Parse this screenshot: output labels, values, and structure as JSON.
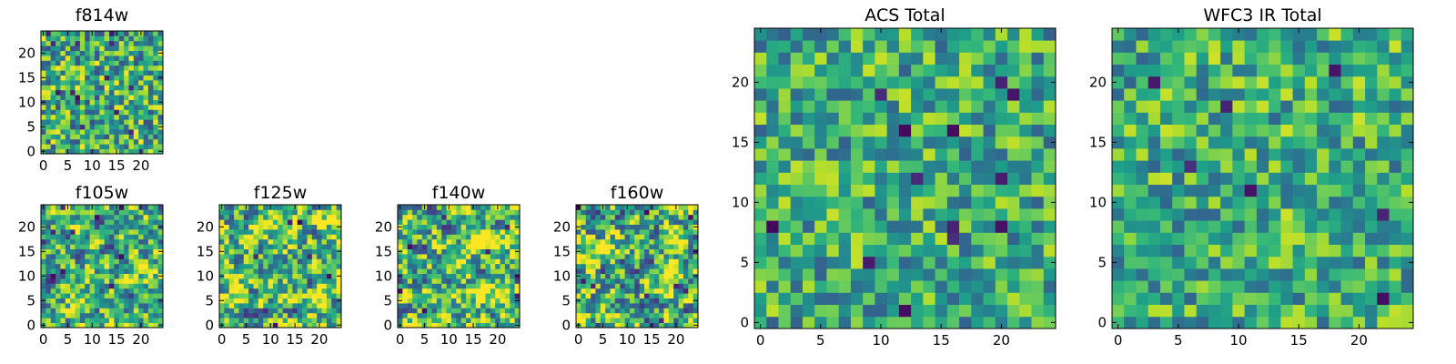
{
  "colors": {
    "colormap": "viridis",
    "low": "#440154",
    "mid": "#21918c",
    "high": "#fde725"
  },
  "chart_data": [
    {
      "type": "heatmap",
      "title": "f814w",
      "grid_size": 25,
      "x_ticks": [
        0,
        5,
        10,
        15,
        20
      ],
      "y_ticks": [
        0,
        5,
        10,
        15,
        20
      ],
      "seed": 814,
      "mean": 0.62,
      "spread": 0.22,
      "smooth": 0
    },
    {
      "type": "heatmap",
      "title": "f105w",
      "grid_size": 25,
      "x_ticks": [
        0,
        5,
        10,
        15,
        20
      ],
      "y_ticks": [
        0,
        5,
        10,
        15,
        20
      ],
      "seed": 105,
      "mean": 0.63,
      "spread": 0.22,
      "smooth": 1
    },
    {
      "type": "heatmap",
      "title": "f125w",
      "grid_size": 25,
      "x_ticks": [
        0,
        5,
        10,
        15,
        20
      ],
      "y_ticks": [
        0,
        5,
        10,
        15,
        20
      ],
      "seed": 125,
      "mean": 0.68,
      "spread": 0.25,
      "smooth": 1
    },
    {
      "type": "heatmap",
      "title": "f140w",
      "grid_size": 25,
      "x_ticks": [
        0,
        5,
        10,
        15,
        20
      ],
      "y_ticks": [
        0,
        5,
        10,
        15,
        20
      ],
      "seed": 140,
      "mean": 0.68,
      "spread": 0.25,
      "smooth": 1
    },
    {
      "type": "heatmap",
      "title": "f160w",
      "grid_size": 25,
      "x_ticks": [
        0,
        5,
        10,
        15,
        20
      ],
      "y_ticks": [
        0,
        5,
        10,
        15,
        20
      ],
      "seed": 160,
      "mean": 0.64,
      "spread": 0.26,
      "smooth": 1
    },
    {
      "type": "heatmap",
      "title": "ACS Total",
      "grid_size": 25,
      "x_ticks": [
        0,
        5,
        10,
        15,
        20
      ],
      "y_ticks": [
        0,
        5,
        10,
        15,
        20
      ],
      "seed": 901,
      "mean": 0.62,
      "spread": 0.18,
      "smooth": 0
    },
    {
      "type": "heatmap",
      "title": "WFC3 IR Total",
      "grid_size": 25,
      "x_ticks": [
        0,
        5,
        10,
        15,
        20
      ],
      "y_ticks": [
        0,
        5,
        10,
        15,
        20
      ],
      "seed": 902,
      "mean": 0.62,
      "spread": 0.17,
      "smooth": 0
    }
  ]
}
